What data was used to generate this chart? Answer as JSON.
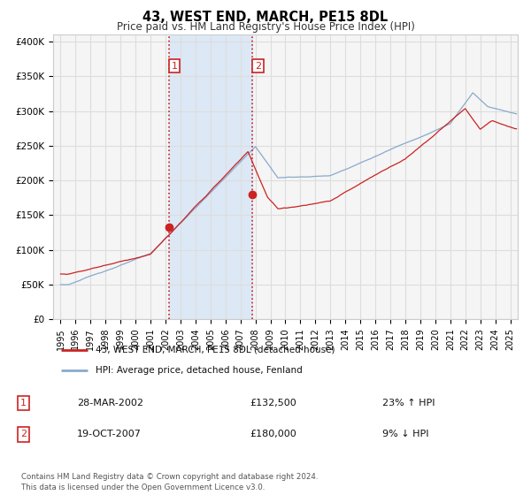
{
  "title": "43, WEST END, MARCH, PE15 8DL",
  "subtitle": "Price paid vs. HM Land Registry's House Price Index (HPI)",
  "ylabel_ticks": [
    "£0",
    "£50K",
    "£100K",
    "£150K",
    "£200K",
    "£250K",
    "£300K",
    "£350K",
    "£400K"
  ],
  "ytick_values": [
    0,
    50000,
    100000,
    150000,
    200000,
    250000,
    300000,
    350000,
    400000
  ],
  "ylim": [
    0,
    410000
  ],
  "xlim_start": 1994.5,
  "xlim_end": 2025.5,
  "background_color": "#ffffff",
  "plot_bg_color": "#f5f5f5",
  "grid_color": "#dddddd",
  "red_line_color": "#cc2222",
  "blue_line_color": "#88aacc",
  "highlight_bg": "#dce8f5",
  "vline_color": "#cc2222",
  "marker1_date": 2002.23,
  "marker2_date": 2007.8,
  "marker1_value": 132500,
  "marker2_value": 180000,
  "legend_label_red": "43, WEST END, MARCH, PE15 8DL (detached house)",
  "legend_label_blue": "HPI: Average price, detached house, Fenland",
  "table_row1_num": "1",
  "table_row1_date": "28-MAR-2002",
  "table_row1_price": "£132,500",
  "table_row1_hpi": "23% ↑ HPI",
  "table_row2_num": "2",
  "table_row2_date": "19-OCT-2007",
  "table_row2_price": "£180,000",
  "table_row2_hpi": "9% ↓ HPI",
  "footer": "Contains HM Land Registry data © Crown copyright and database right 2024.\nThis data is licensed under the Open Government Licence v3.0.",
  "xtick_years": [
    1995,
    1996,
    1997,
    1998,
    1999,
    2000,
    2001,
    2002,
    2003,
    2004,
    2005,
    2006,
    2007,
    2008,
    2009,
    2010,
    2011,
    2012,
    2013,
    2014,
    2015,
    2016,
    2017,
    2018,
    2019,
    2020,
    2021,
    2022,
    2023,
    2024,
    2025
  ],
  "hatch_start": 2024.5
}
